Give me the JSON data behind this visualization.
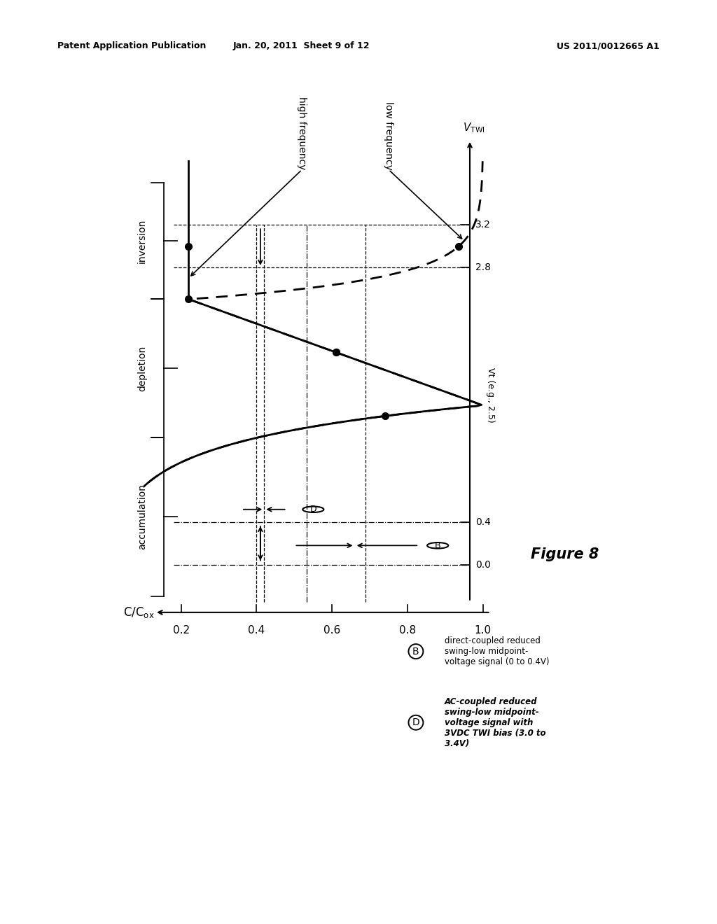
{
  "title_header_left": "Patent Application Publication",
  "title_header_mid": "Jan. 20, 2011  Sheet 9 of 12",
  "title_header_right": "US 2011/0012665 A1",
  "figure_label": "Figure 8",
  "bg_color": "#ffffff",
  "text_color": "#000000",
  "regions": [
    "accumulation",
    "depletion",
    "inversion"
  ],
  "x_ticks": [
    1.0,
    0.8,
    0.6,
    0.4,
    0.2
  ],
  "y_ticks_right": [
    0.0,
    0.4,
    2.8,
    3.2
  ],
  "vt_label": "Vt (e.g., 2.5)",
  "low_freq_label": "low frequency",
  "high_freq_label": "high frequency",
  "vtwi_label": "V_TWI",
  "ccox_label": "C/Cox",
  "legend_B_text": "direct-coupled reduced\nswing-low midpoint-\nvoltage signal (0 to 0.4V)",
  "legend_D_text": "AC-coupled reduced\nswing-low midpoint-\nvoltage signal with\n3VDC TWI bias (3.0 to\n3.4V)",
  "Vt": 2.5,
  "Vfb": 1.5,
  "Cox": 1.0,
  "Cmin": 0.22,
  "xlim": [
    0.1,
    1.05
  ],
  "ylim": [
    -0.6,
    4.1
  ]
}
